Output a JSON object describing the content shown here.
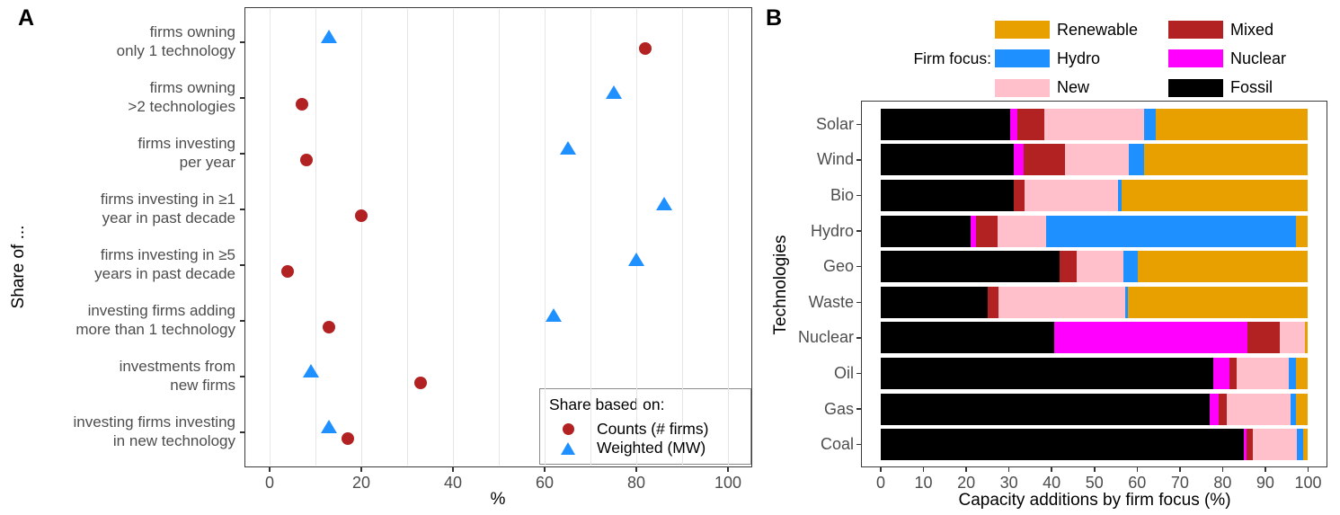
{
  "panelA": {
    "label": "A",
    "y_title": "Share of ...",
    "x_title": "%",
    "legend": {
      "title": "Share based on:",
      "items": [
        {
          "label": "Counts (# firms)",
          "symbol": "circle",
          "color": "#B22222"
        },
        {
          "label": "Weighted (MW)",
          "symbol": "triangle",
          "color": "#1E90FF"
        }
      ]
    }
  },
  "panelB": {
    "label": "B",
    "legend_prefix": "Firm focus:",
    "y_title": "Technologies",
    "x_title": "Capacity additions by firm focus (%)",
    "legend_columns": [
      [
        {
          "label": "Renewable",
          "color": "#E8A000"
        },
        {
          "label": "Hydro",
          "color": "#1E90FF"
        },
        {
          "label": "New",
          "color": "#FFC0CB"
        }
      ],
      [
        {
          "label": "Mixed",
          "color": "#B22222"
        },
        {
          "label": "Nuclear",
          "color": "#FF00FF"
        },
        {
          "label": "Fossil",
          "color": "#000000"
        }
      ]
    ]
  },
  "chart_data": [
    {
      "panel": "A",
      "type": "scatter",
      "title": "",
      "xlabel": "%",
      "ylabel": "Share of ...",
      "xlim": [
        0,
        100
      ],
      "xticks": [
        0,
        20,
        40,
        60,
        80,
        100
      ],
      "gridline_step": 10,
      "grid": "vertical-only",
      "legend_position": "bottom-right-inside",
      "categories": [
        [
          "firms owning",
          "only 1 technology"
        ],
        [
          "firms owning",
          ">2 technologies"
        ],
        [
          "firms investing",
          "per year"
        ],
        [
          "firms investing in ≥1",
          "year in past decade"
        ],
        [
          "firms investing in ≥5",
          "years in past decade"
        ],
        [
          "investing firms adding",
          "more than 1 technology"
        ],
        [
          "investments from",
          "new firms"
        ],
        [
          "investing firms investing",
          "in new technology"
        ]
      ],
      "series": [
        {
          "name": "Counts (# firms)",
          "symbol": "circle",
          "color": "#B22222",
          "values": [
            82,
            7,
            8,
            20,
            4,
            13,
            33,
            17
          ]
        },
        {
          "name": "Weighted (MW)",
          "symbol": "triangle",
          "color": "#1E90FF",
          "values": [
            13,
            75,
            65,
            86,
            80,
            62,
            9,
            13
          ]
        }
      ]
    },
    {
      "panel": "B",
      "type": "stacked_bar_horizontal",
      "title": "",
      "xlabel": "Capacity additions by firm focus (%)",
      "ylabel": "Technologies",
      "xlim": [
        0,
        100
      ],
      "xticks": [
        0,
        10,
        20,
        30,
        40,
        50,
        60,
        70,
        80,
        90,
        100
      ],
      "grid": "off",
      "legend_title": "Firm focus:",
      "categories": [
        "Solar",
        "Wind",
        "Bio",
        "Hydro",
        "Geo",
        "Waste",
        "Nuclear",
        "Oil",
        "Gas",
        "Coal"
      ],
      "stack_order": [
        "Fossil",
        "Nuclear",
        "Mixed",
        "New",
        "Hydro",
        "Renewable"
      ],
      "series": [
        {
          "name": "Fossil",
          "color": "#000000",
          "values": [
            30.3,
            31.2,
            31.2,
            21.1,
            41.9,
            25.0,
            40.6,
            77.8,
            77.0,
            84.9
          ]
        },
        {
          "name": "Nuclear",
          "color": "#FF00FF",
          "values": [
            1.7,
            2.3,
            0,
            1.2,
            0,
            0,
            45.2,
            3.7,
            2.1,
            0.7
          ]
        },
        {
          "name": "Mixed",
          "color": "#B22222",
          "values": [
            6.2,
            9.7,
            2.5,
            5.0,
            3.9,
            2.6,
            7.5,
            1.7,
            1.8,
            1.5
          ]
        },
        {
          "name": "New",
          "color": "#FFC0CB",
          "values": [
            23.5,
            14.9,
            21.8,
            11.4,
            10.9,
            29.6,
            6.0,
            12.3,
            15.0,
            10.3
          ]
        },
        {
          "name": "Hydro",
          "color": "#1E90FF",
          "values": [
            2.6,
            3.6,
            0.8,
            58.5,
            3.5,
            0.6,
            0,
            1.7,
            1.3,
            1.5
          ]
        },
        {
          "name": "Renewable",
          "color": "#E8A000",
          "values": [
            35.7,
            38.3,
            43.7,
            2.8,
            39.8,
            42.2,
            0.7,
            2.8,
            2.8,
            1.1
          ]
        }
      ]
    }
  ]
}
